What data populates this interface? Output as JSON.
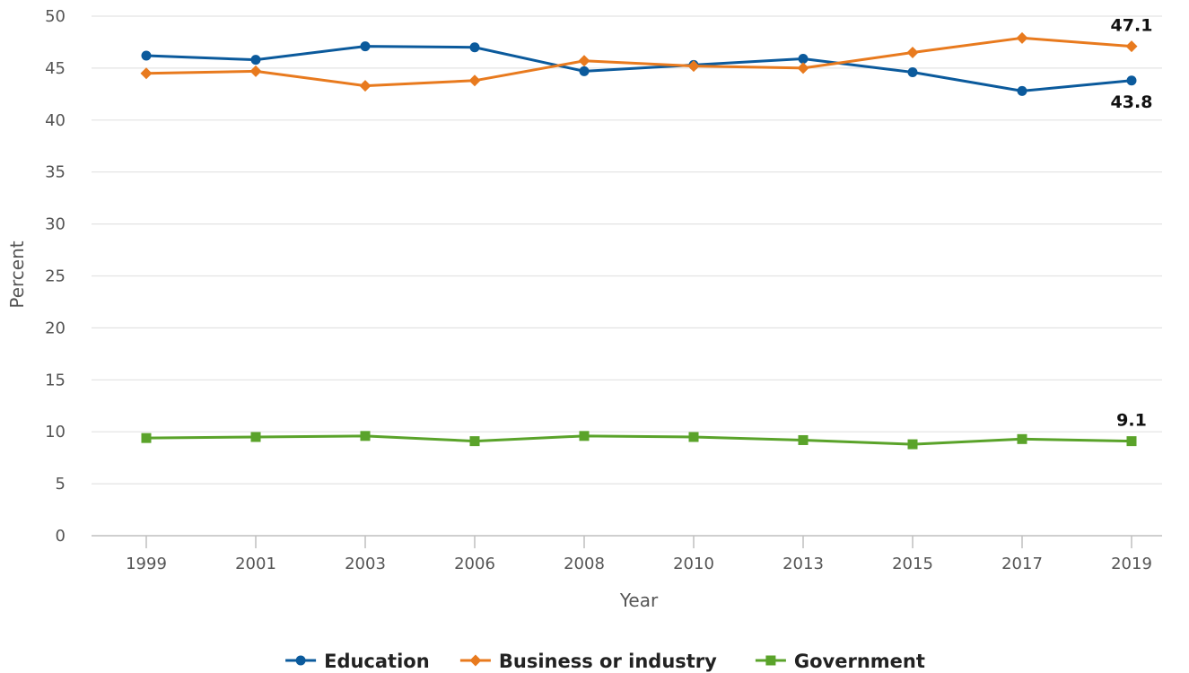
{
  "chart_data": {
    "type": "line",
    "xlabel": "Year",
    "ylabel": "Percent",
    "categories": [
      "1999",
      "2001",
      "2003",
      "2006",
      "2008",
      "2010",
      "2013",
      "2015",
      "2017",
      "2019"
    ],
    "ylim": [
      0,
      50
    ],
    "yticks": [
      0,
      5,
      10,
      15,
      20,
      25,
      30,
      35,
      40,
      45,
      50
    ],
    "grid": true,
    "legend_position": "bottom",
    "series": [
      {
        "name": "Education",
        "color": "#0b5a9c",
        "marker": "circle",
        "values": [
          46.2,
          45.8,
          47.1,
          47.0,
          44.7,
          45.3,
          45.9,
          44.6,
          42.8,
          43.8
        ]
      },
      {
        "name": "Business or industry",
        "color": "#e87a1e",
        "marker": "diamond",
        "values": [
          44.5,
          44.7,
          43.3,
          43.8,
          45.7,
          45.2,
          45.0,
          46.5,
          47.9,
          47.1
        ]
      },
      {
        "name": "Government",
        "color": "#5aa32a",
        "marker": "square",
        "values": [
          9.4,
          9.5,
          9.6,
          9.1,
          9.6,
          9.5,
          9.2,
          8.8,
          9.3,
          9.1
        ]
      }
    ],
    "data_labels": [
      {
        "series": "Business or industry",
        "category": "2019",
        "text": "47.1",
        "position": "above"
      },
      {
        "series": "Education",
        "category": "2019",
        "text": "43.8",
        "position": "below"
      },
      {
        "series": "Government",
        "category": "2019",
        "text": "9.1",
        "position": "above"
      }
    ]
  }
}
